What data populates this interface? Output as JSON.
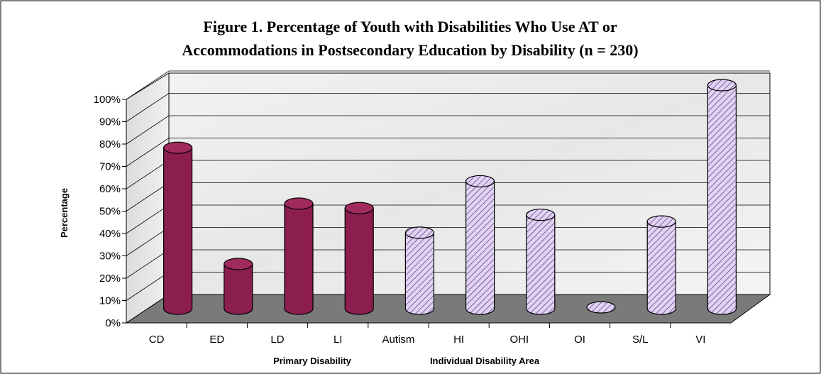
{
  "chart_data": {
    "type": "bar",
    "title_line1": "Figure 1. Percentage of Youth with Disabilities Who Use AT or",
    "title_line2": "Accommodations in Postsecondary Education by Disability (n = 230)",
    "ylabel": "Percentage",
    "group_labels": [
      "Primary Disability",
      "Individual Disability Area"
    ],
    "categories": [
      "CD",
      "ED",
      "LD",
      "LI",
      "Autism",
      "HI",
      "OHI",
      "OI",
      "S/L",
      "VI"
    ],
    "values": [
      72,
      20,
      47,
      45,
      34,
      57,
      42,
      0,
      39,
      100
    ],
    "groups": [
      "primary",
      "primary",
      "primary",
      "primary",
      "individual",
      "individual",
      "individual",
      "individual",
      "individual",
      "individual"
    ],
    "ylim": [
      0,
      100
    ],
    "yticks": [
      "0%",
      "10%",
      "20%",
      "30%",
      "40%",
      "50%",
      "60%",
      "70%",
      "80%",
      "90%",
      "100%"
    ],
    "grid": true,
    "colors": {
      "primary": "#8b1d4f",
      "primary_top": "#a12a5f",
      "individual_fill": "#e2d2f3",
      "individual_hatch": "#7a64a0",
      "floor": "#7a7a7a",
      "wall": "#e6e6e6"
    }
  }
}
